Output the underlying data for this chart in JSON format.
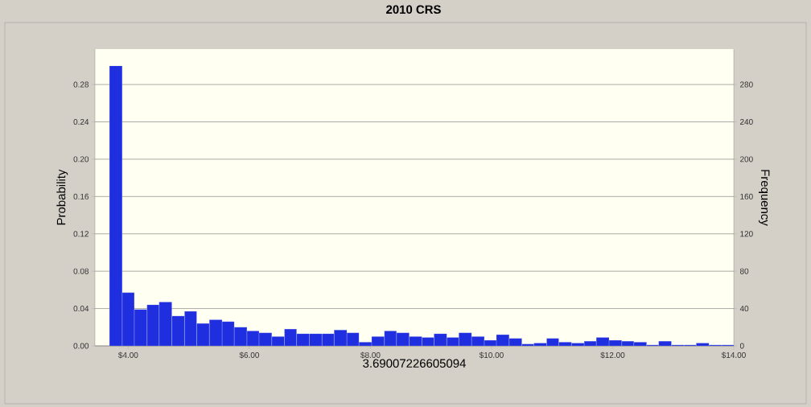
{
  "chart_data": {
    "type": "histogram",
    "title": "2010 CRS",
    "xlabel": "3.69007226605094",
    "ylabel": "Probability",
    "y2label": "Frequency",
    "color": "#1f2fe0",
    "grid": "y",
    "bins": [
      3.69,
      3.9,
      4.1,
      4.31,
      4.51,
      4.72,
      4.93,
      5.13,
      5.34,
      5.55,
      5.75,
      5.96,
      6.16,
      6.37,
      6.58,
      6.78,
      6.99,
      7.2,
      7.4,
      7.61,
      7.81,
      8.02,
      8.23,
      8.43,
      8.64,
      8.85,
      9.05,
      9.26,
      9.46,
      9.67,
      9.88,
      10.08,
      10.29,
      10.5,
      10.7,
      10.91,
      11.11,
      11.32,
      11.53,
      11.73,
      11.94,
      12.15,
      12.35,
      12.56,
      12.76,
      12.97,
      13.18,
      13.38,
      13.59,
      13.8,
      14.0
    ],
    "values": [
      0.3,
      0.057,
      0.039,
      0.044,
      0.047,
      0.032,
      0.037,
      0.024,
      0.028,
      0.026,
      0.02,
      0.016,
      0.014,
      0.01,
      0.018,
      0.013,
      0.013,
      0.013,
      0.017,
      0.014,
      0.004,
      0.01,
      0.016,
      0.014,
      0.01,
      0.009,
      0.013,
      0.009,
      0.014,
      0.01,
      0.006,
      0.012,
      0.008,
      0.002,
      0.003,
      0.008,
      0.004,
      0.003,
      0.005,
      0.009,
      0.006,
      0.005,
      0.004,
      0.001,
      0.005,
      0.001,
      0.001,
      0.003,
      0.001,
      0.001
    ],
    "xlim": [
      3.45,
      14.0
    ],
    "ylim": [
      0,
      0.318
    ],
    "y2lim": [
      0,
      318
    ],
    "xticks": [
      {
        "value": 4,
        "label": "$4.00"
      },
      {
        "value": 6,
        "label": "$6.00"
      },
      {
        "value": 8,
        "label": "$8.00"
      },
      {
        "value": 10,
        "label": "$10.00"
      },
      {
        "value": 12,
        "label": "$12.00"
      },
      {
        "value": 14,
        "label": "$14.00"
      }
    ],
    "yticks": [
      {
        "value": 0,
        "label": "0.00"
      },
      {
        "value": 0.04,
        "label": "0.04"
      },
      {
        "value": 0.08,
        "label": "0.08"
      },
      {
        "value": 0.12,
        "label": "0.12"
      },
      {
        "value": 0.16,
        "label": "0.16"
      },
      {
        "value": 0.2,
        "label": "0.20"
      },
      {
        "value": 0.24,
        "label": "0.24"
      },
      {
        "value": 0.28,
        "label": "0.28"
      }
    ],
    "y2ticks": [
      0,
      40,
      80,
      120,
      160,
      200,
      240,
      280
    ]
  }
}
